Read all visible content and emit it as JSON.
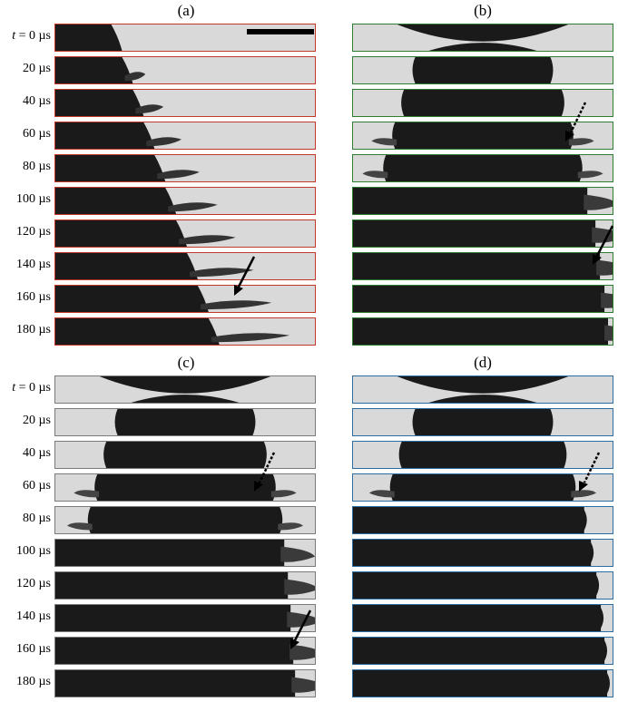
{
  "panels": [
    {
      "label": "(a)",
      "border_color": "#c0392b"
    },
    {
      "label": "(b)",
      "border_color": "#2e7d32"
    },
    {
      "label": "(c)",
      "border_color": "#7a7a7a"
    },
    {
      "label": "(d)",
      "border_color": "#2e6da4"
    }
  ],
  "time_labels": {
    "first_var": "t",
    "first_rest": " = 0 µs",
    "rest": [
      "20 µs",
      "40 µs",
      "60 µs",
      "80 µs",
      "100 µs",
      "120 µs",
      "140 µs",
      "160 µs",
      "180 µs"
    ]
  },
  "colors": {
    "background": "#d9d9d9",
    "drop": "#1a1a1a",
    "arrow": "#000000"
  }
}
